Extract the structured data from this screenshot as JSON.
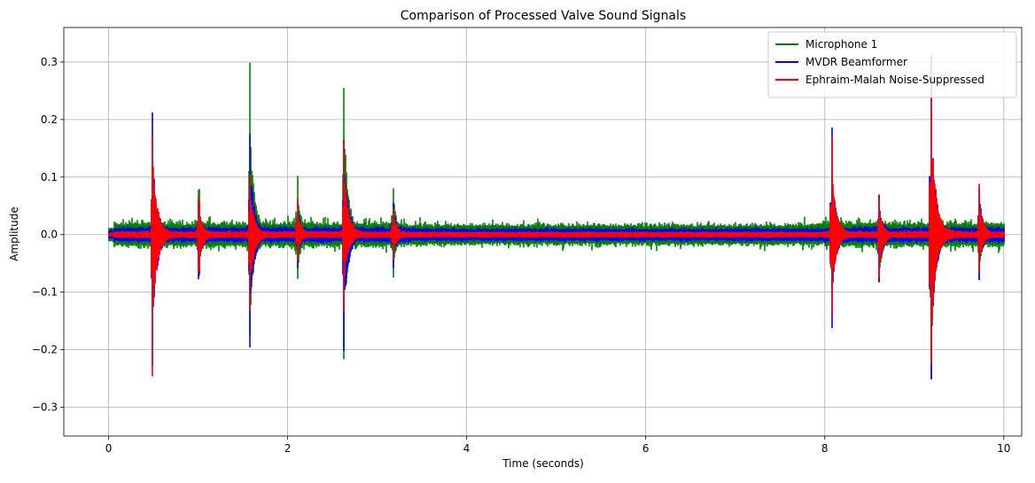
{
  "chart_data": {
    "type": "line",
    "title": "Comparison of Processed Valve Sound Signals",
    "xlabel": "Time (seconds)",
    "ylabel": "Amplitude",
    "xlim": [
      -0.5,
      10.2
    ],
    "ylim": [
      -0.35,
      0.36
    ],
    "xticks": [
      0,
      2,
      4,
      6,
      8,
      10
    ],
    "xtick_labels": [
      "0",
      "2",
      "4",
      "6",
      "8",
      "10"
    ],
    "yticks": [
      -0.3,
      -0.2,
      -0.1,
      0.0,
      0.1,
      0.2,
      0.3
    ],
    "ytick_labels": [
      "−0.3",
      "−0.2",
      "−0.1",
      "0.0",
      "0.1",
      "0.2",
      "0.3"
    ],
    "grid": true,
    "legend_position": "top-right",
    "duration_seconds": 10,
    "series": [
      {
        "name": "Microphone 1",
        "color": "#008000",
        "noise_amplitude": 0.03,
        "events": [
          {
            "t": 0.48,
            "max": 0.12,
            "min": -0.14
          },
          {
            "t": 1.0,
            "max": 0.08,
            "min": -0.08
          },
          {
            "t": 1.57,
            "max": 0.32,
            "min": -0.23
          },
          {
            "t": 2.1,
            "max": 0.115,
            "min": -0.1
          },
          {
            "t": 2.62,
            "max": 0.305,
            "min": -0.23
          },
          {
            "t": 3.17,
            "max": 0.105,
            "min": -0.09
          },
          {
            "t": 8.07,
            "max": 0.12,
            "min": -0.12
          },
          {
            "t": 8.6,
            "max": 0.08,
            "min": -0.11
          },
          {
            "t": 9.18,
            "max": 0.11,
            "min": -0.315
          },
          {
            "t": 9.72,
            "max": 0.08,
            "min": -0.09
          }
        ]
      },
      {
        "name": "MVDR Beamformer",
        "color": "#0000ff",
        "noise_amplitude": 0.018,
        "events": [
          {
            "t": 0.48,
            "max": 0.23,
            "min": -0.26
          },
          {
            "t": 1.0,
            "max": 0.07,
            "min": -0.085
          },
          {
            "t": 1.57,
            "max": 0.205,
            "min": -0.2
          },
          {
            "t": 2.1,
            "max": 0.07,
            "min": -0.06
          },
          {
            "t": 2.62,
            "max": 0.205,
            "min": -0.225
          },
          {
            "t": 3.17,
            "max": 0.07,
            "min": -0.06
          },
          {
            "t": 8.07,
            "max": 0.19,
            "min": -0.17
          },
          {
            "t": 8.6,
            "max": 0.08,
            "min": -0.1
          },
          {
            "t": 9.18,
            "max": 0.33,
            "min": -0.3
          },
          {
            "t": 9.72,
            "max": 0.1,
            "min": -0.08
          }
        ]
      },
      {
        "name": "Ephraim-Malah Noise-Suppressed",
        "color": "#ff0000",
        "noise_amplitude": 0.008,
        "events": [
          {
            "t": 0.48,
            "max": 0.22,
            "min": -0.255
          },
          {
            "t": 1.0,
            "max": 0.065,
            "min": -0.08
          },
          {
            "t": 1.57,
            "max": 0.13,
            "min": -0.15
          },
          {
            "t": 2.1,
            "max": 0.065,
            "min": -0.05
          },
          {
            "t": 2.62,
            "max": 0.18,
            "min": -0.135
          },
          {
            "t": 3.17,
            "max": 0.06,
            "min": -0.05
          },
          {
            "t": 8.07,
            "max": 0.18,
            "min": -0.17
          },
          {
            "t": 8.6,
            "max": 0.07,
            "min": -0.09
          },
          {
            "t": 9.18,
            "max": 0.33,
            "min": -0.3
          },
          {
            "t": 9.72,
            "max": 0.09,
            "min": -0.07
          }
        ]
      }
    ]
  }
}
